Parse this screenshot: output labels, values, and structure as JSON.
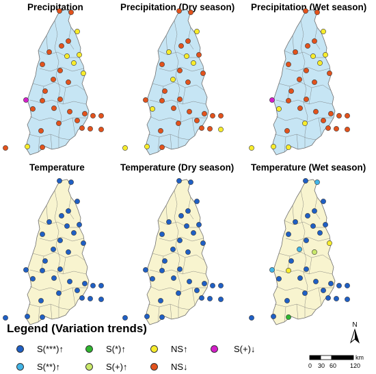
{
  "colors": {
    "precip_fill": "#c6e5f4",
    "temp_fill": "#f8f4cf",
    "boundary": "#6f6f6f",
    "S3_up": "#1f5fc4",
    "S2_up": "#42b4e6",
    "S1_up": "#2fb62f",
    "Splus_up": "#c9e86a",
    "NS_up": "#f7ec2c",
    "NS_down": "#e2521c",
    "Splus_down": "#d31ec8"
  },
  "panels": [
    {
      "title": "Precipitation",
      "fill": "precip"
    },
    {
      "title": "Precipitation (Dry season)",
      "fill": "precip"
    },
    {
      "title": "Precipitation (Wet season)",
      "fill": "precip"
    },
    {
      "title": "Temperature",
      "fill": "temp"
    },
    {
      "title": "Temperature (Dry season)",
      "fill": "temp"
    },
    {
      "title": "Temperature (Wet season)",
      "fill": "temp"
    }
  ],
  "station_trends": [
    [
      "NS_down",
      "NS_down",
      "NS_up",
      "NS_down",
      "NS_down",
      "NS_down",
      "NS_up",
      "NS_up",
      "NS_down",
      "NS_up",
      "NS_down",
      "NS_up",
      "NS_down",
      "NS_down",
      "NS_down",
      "Splus_down",
      "NS_down",
      "NS_down",
      "NS_down",
      "NS_down",
      "NS_down",
      "NS_down",
      "NS_down",
      "NS_down",
      "NS_down",
      "NS_down",
      "NS_down",
      "NS_down",
      "NS_down",
      "NS_down",
      "NS_up",
      "NS_down",
      "NS_down"
    ],
    [
      "NS_down",
      "NS_down",
      "NS_up",
      "NS_down",
      "NS_down",
      "NS_up",
      "NS_down",
      "NS_up",
      "NS_down",
      "NS_up",
      "NS_down",
      "NS_down",
      "NS_up",
      "NS_down",
      "NS_down",
      "NS_down",
      "NS_down",
      "NS_down",
      "NS_up",
      "NS_down",
      "NS_down",
      "NS_down",
      "NS_down",
      "NS_down",
      "NS_down",
      "NS_down",
      "NS_down",
      "NS_down",
      "NS_down",
      "NS_up",
      "NS_up",
      "NS_up",
      "NS_down"
    ],
    [
      "NS_down",
      "NS_down",
      "NS_up",
      "NS_down",
      "NS_down",
      "NS_down",
      "NS_up",
      "NS_up",
      "NS_down",
      "NS_up",
      "NS_down",
      "NS_down",
      "NS_down",
      "NS_down",
      "NS_down",
      "Splus_down",
      "NS_down",
      "NS_down",
      "NS_up",
      "NS_down",
      "NS_down",
      "NS_down",
      "NS_up",
      "NS_down",
      "NS_down",
      "NS_down",
      "NS_down",
      "NS_down",
      "NS_down",
      "NS_down",
      "NS_up",
      "NS_up",
      "NS_up"
    ],
    [
      "S3_up",
      "S3_up",
      "S3_up",
      "S3_up",
      "S3_up",
      "S3_up",
      "S3_up",
      "S3_up",
      "S3_up",
      "S3_up",
      "S3_up",
      "S3_up",
      "S3_up",
      "S3_up",
      "S3_up",
      "S3_up",
      "S3_up",
      "S3_up",
      "S3_up",
      "S3_up",
      "S3_up",
      "S3_up",
      "S3_up",
      "S3_up",
      "S3_up",
      "S3_up",
      "S3_up",
      "S3_up",
      "S3_up",
      "S3_up",
      "S3_up",
      "S3_up",
      "S3_up"
    ],
    [
      "S3_up",
      "S3_up",
      "S3_up",
      "S3_up",
      "S3_up",
      "S3_up",
      "S3_up",
      "S3_up",
      "S3_up",
      "S3_up",
      "S3_up",
      "S3_up",
      "S3_up",
      "S3_up",
      "S3_up",
      "S3_up",
      "S3_up",
      "S3_up",
      "S3_up",
      "S3_up",
      "S3_up",
      "S3_up",
      "S3_up",
      "S3_up",
      "S3_up",
      "S3_up",
      "S3_up",
      "S3_up",
      "S3_up",
      "S3_up",
      "S3_up",
      "S3_up",
      "S3_up"
    ],
    [
      "S3_up",
      "S2_up",
      "S3_up",
      "S3_up",
      "S3_up",
      "S3_up",
      "S3_up",
      "S3_up",
      "S3_up",
      "S3_up",
      "S3_up",
      "NS_up",
      "S2_up",
      "Splus_up",
      "S3_up",
      "S2_up",
      "NS_up",
      "S3_up",
      "S3_up",
      "S3_up",
      "S3_up",
      "S3_up",
      "S3_up",
      "S3_up",
      "S3_up",
      "S3_up",
      "S3_up",
      "S3_up",
      "S3_up",
      "S3_up",
      "S3_up",
      "S3_up",
      "S1_up"
    ]
  ],
  "legend": {
    "title": "Legend (Variation trends)",
    "items": [
      {
        "key": "S3_up",
        "label": "S(***)↑"
      },
      {
        "key": "S1_up",
        "label": "S(*)↑"
      },
      {
        "key": "NS_up",
        "label": "NS↑"
      },
      {
        "key": "Splus_down",
        "label": "S(+)↓"
      },
      {
        "key": "S2_up",
        "label": "S(**)↑"
      },
      {
        "key": "Splus_up",
        "label": "S(+)↑"
      },
      {
        "key": "NS_down",
        "label": "NS↓"
      }
    ]
  },
  "north_arrow": {
    "label": "N"
  },
  "scale_bar": {
    "ticks": [
      "0",
      "30",
      "60",
      "120"
    ],
    "unit": "km"
  }
}
